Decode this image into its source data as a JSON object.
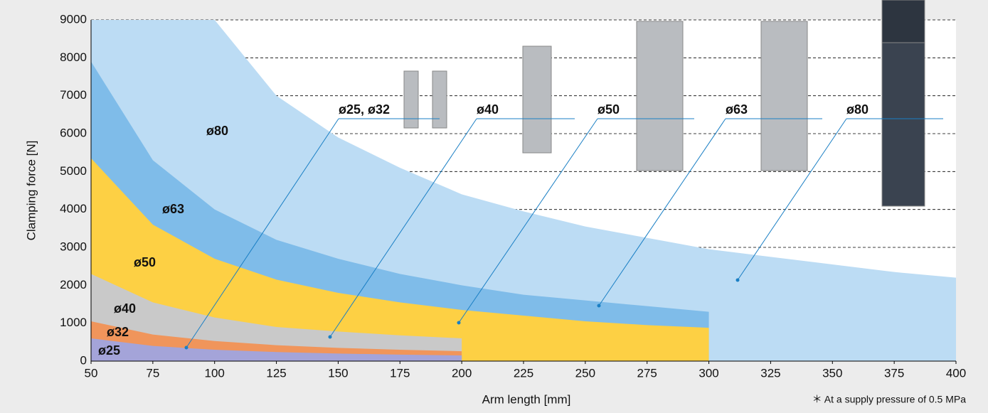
{
  "chart_data": {
    "type": "area",
    "x_label": "Arm length [mm]",
    "y_label": "Clamping force [N]",
    "note": "＊ At a supply pressure of 0.5 MPa",
    "xlim": [
      50,
      400
    ],
    "xticks": [
      50,
      75,
      100,
      125,
      150,
      175,
      200,
      225,
      250,
      275,
      300,
      325,
      350,
      375,
      400
    ],
    "ylim": [
      0,
      9000
    ],
    "yticks": [
      0,
      1000,
      2000,
      3000,
      4000,
      5000,
      6000,
      7000,
      8000,
      9000
    ],
    "grid": true,
    "series": [
      {
        "name": "ø80",
        "color": "#bcdcf4",
        "x": [
          50,
          75,
          100,
          125,
          150,
          175,
          200,
          225,
          250,
          275,
          300,
          325,
          350,
          375,
          400
        ],
        "values": [
          9000,
          9000,
          9000,
          7000,
          5900,
          5100,
          4400,
          3950,
          3550,
          3250,
          2950,
          2750,
          2550,
          2350,
          2200
        ]
      },
      {
        "name": "ø63",
        "color": "#7fbce9",
        "x": [
          50,
          75,
          100,
          125,
          150,
          175,
          200,
          225,
          250,
          275,
          300
        ],
        "values": [
          7900,
          5300,
          4000,
          3200,
          2700,
          2300,
          2000,
          1750,
          1600,
          1450,
          1300
        ]
      },
      {
        "name": "ø50",
        "color": "#fdd044",
        "x": [
          50,
          75,
          100,
          125,
          150,
          175,
          200,
          225,
          250,
          275,
          300
        ],
        "values": [
          5350,
          3600,
          2700,
          2150,
          1800,
          1550,
          1350,
          1200,
          1050,
          950,
          880
        ]
      },
      {
        "name": "ø40",
        "color": "#c9c9c9",
        "x": [
          50,
          75,
          100,
          125,
          150,
          175,
          200
        ],
        "values": [
          2300,
          1550,
          1150,
          900,
          780,
          680,
          600
        ]
      },
      {
        "name": "ø32",
        "color": "#f0955b",
        "x": [
          50,
          75,
          100,
          125,
          150,
          175,
          200
        ],
        "values": [
          1050,
          700,
          530,
          420,
          350,
          300,
          260
        ]
      },
      {
        "name": "ø25",
        "color": "#a4a4d9",
        "x": [
          50,
          75,
          100,
          125,
          150,
          175,
          200
        ],
        "values": [
          600,
          400,
          300,
          240,
          200,
          170,
          150
        ]
      }
    ],
    "callouts": [
      "ø25, ø32",
      "ø40",
      "ø50",
      "ø63",
      "ø80"
    ]
  }
}
